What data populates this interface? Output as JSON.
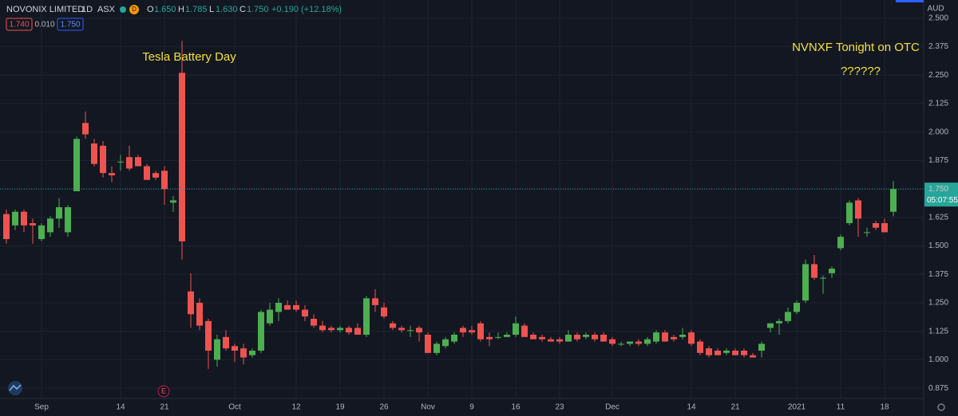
{
  "chart_data": {
    "type": "candlestick",
    "header": {
      "symbol": "NOVONIX LIMITED",
      "interval": "1D",
      "exchange": "ASX",
      "badge": "D",
      "o_key": "O",
      "o": "1.650",
      "h_key": "H",
      "h": "1.785",
      "l_key": "L",
      "l": "1.630",
      "c_key": "C",
      "c": "1.750",
      "change": "+0.190 (+12.18%)",
      "bid": "1.740",
      "spread": "0.010",
      "ask": "1.750"
    },
    "currency": "AUD",
    "annotations": [
      "Tesla Battery Day",
      "NVNXF Tonight on OTC",
      "??????"
    ],
    "event_marker": "E",
    "last_price": {
      "value": 1.75,
      "label": "1.750"
    },
    "countdown": "05:07:55",
    "up_color": "#4caf50",
    "down_color": "#ef5350",
    "grid": true,
    "categories": [
      null,
      null,
      null,
      null,
      "Sep",
      null,
      null,
      null,
      null,
      null,
      null,
      null,
      null,
      "14",
      null,
      null,
      null,
      null,
      "21",
      null,
      null,
      null,
      null,
      null,
      null,
      null,
      "Oct",
      null,
      null,
      null,
      null,
      null,
      null,
      "12",
      null,
      null,
      null,
      null,
      "19",
      null,
      null,
      null,
      null,
      "26",
      null,
      null,
      null,
      null,
      "Nov",
      null,
      null,
      null,
      null,
      "9",
      null,
      null,
      null,
      null,
      "16",
      null,
      null,
      null,
      null,
      "23",
      null,
      null,
      null,
      null,
      null,
      "Dec",
      null,
      null,
      null,
      null,
      null,
      null,
      null,
      null,
      "14",
      null,
      null,
      null,
      null,
      "21",
      null,
      null,
      null,
      null,
      null,
      null,
      "2021",
      null,
      null,
      null,
      null,
      "11",
      null,
      null,
      null,
      null,
      "18",
      null
    ],
    "open": [
      1.64,
      1.59,
      1.65,
      1.6,
      1.53,
      1.56,
      1.62,
      1.56,
      1.74,
      2.04,
      1.95,
      1.94,
      1.82,
      1.87,
      1.89,
      1.89,
      1.85,
      1.82,
      1.83,
      1.69,
      2.26,
      1.3,
      1.25,
      1.17,
      1.0,
      1.1,
      1.06,
      1.05,
      1.02,
      1.04,
      1.16,
      1.21,
      1.24,
      1.24,
      1.22,
      1.18,
      1.15,
      1.14,
      1.13,
      1.14,
      1.14,
      1.11,
      1.27,
      1.23,
      1.16,
      1.14,
      1.13,
      1.14,
      1.11,
      1.03,
      1.06,
      1.08,
      1.14,
      1.13,
      1.16,
      1.1,
      1.1,
      1.1,
      1.11,
      1.15,
      1.11,
      1.1,
      1.09,
      1.09,
      1.08,
      1.11,
      1.1,
      1.11,
      1.11,
      1.09,
      1.07,
      1.07,
      1.08,
      1.07,
      1.08,
      1.12,
      1.1,
      1.1,
      1.12,
      1.08,
      1.05,
      1.04,
      1.03,
      1.04,
      1.04,
      1.02,
      1.04,
      1.14,
      1.16,
      1.17,
      1.21,
      1.26,
      1.42,
      1.36,
      1.38,
      1.49,
      1.6,
      1.7,
      1.56,
      1.6,
      1.6,
      1.65
    ],
    "high": [
      1.66,
      1.66,
      1.66,
      1.62,
      1.6,
      1.63,
      1.71,
      1.68,
      1.98,
      2.09,
      1.97,
      1.96,
      1.85,
      1.9,
      1.94,
      1.9,
      1.86,
      1.83,
      1.85,
      1.72,
      2.4,
      1.38,
      1.27,
      1.18,
      1.11,
      1.13,
      1.07,
      1.07,
      1.05,
      1.22,
      1.25,
      1.27,
      1.26,
      1.26,
      1.24,
      1.2,
      1.17,
      1.15,
      1.15,
      1.15,
      1.16,
      1.28,
      1.31,
      1.25,
      1.17,
      1.15,
      1.15,
      1.15,
      1.12,
      1.08,
      1.1,
      1.12,
      1.15,
      1.15,
      1.17,
      1.12,
      1.12,
      1.12,
      1.19,
      1.16,
      1.12,
      1.11,
      1.1,
      1.1,
      1.13,
      1.12,
      1.12,
      1.12,
      1.12,
      1.1,
      1.08,
      1.08,
      1.09,
      1.1,
      1.13,
      1.13,
      1.11,
      1.14,
      1.13,
      1.09,
      1.06,
      1.05,
      1.05,
      1.05,
      1.05,
      1.03,
      1.08,
      1.16,
      1.18,
      1.23,
      1.26,
      1.44,
      1.46,
      1.37,
      1.41,
      1.55,
      1.7,
      1.71,
      1.58,
      1.61,
      1.62,
      1.785
    ],
    "low": [
      1.51,
      1.57,
      1.56,
      1.51,
      1.52,
      1.54,
      1.58,
      1.54,
      1.74,
      1.97,
      1.85,
      1.8,
      1.78,
      1.83,
      1.83,
      1.85,
      1.79,
      1.79,
      1.68,
      1.65,
      1.44,
      1.14,
      1.13,
      0.96,
      0.97,
      1.04,
      0.99,
      0.98,
      1.01,
      1.03,
      1.15,
      1.17,
      1.22,
      1.21,
      1.17,
      1.14,
      1.12,
      1.12,
      1.12,
      1.11,
      1.11,
      1.1,
      1.21,
      1.18,
      1.13,
      1.12,
      1.1,
      1.08,
      1.03,
      1.02,
      1.05,
      1.07,
      1.1,
      1.11,
      1.08,
      1.06,
      1.09,
      1.1,
      1.1,
      1.1,
      1.09,
      1.08,
      1.08,
      1.07,
      1.08,
      1.08,
      1.09,
      1.08,
      1.08,
      1.06,
      1.06,
      1.06,
      1.06,
      1.06,
      1.07,
      1.08,
      1.08,
      1.09,
      1.06,
      1.02,
      1.01,
      1.02,
      1.02,
      1.02,
      1.01,
      1.01,
      1.01,
      1.12,
      1.11,
      1.16,
      1.2,
      1.25,
      1.35,
      1.29,
      1.36,
      1.48,
      1.59,
      1.54,
      1.54,
      1.57,
      1.56,
      1.63
    ],
    "close": [
      1.53,
      1.65,
      1.59,
      1.59,
      1.59,
      1.62,
      1.67,
      1.67,
      1.97,
      1.99,
      1.86,
      1.82,
      1.81,
      1.87,
      1.84,
      1.85,
      1.79,
      1.8,
      1.75,
      1.7,
      1.52,
      1.2,
      1.15,
      1.04,
      1.09,
      1.05,
      1.04,
      1.01,
      1.04,
      1.21,
      1.22,
      1.25,
      1.22,
      1.22,
      1.19,
      1.15,
      1.13,
      1.13,
      1.14,
      1.12,
      1.11,
      1.27,
      1.24,
      1.19,
      1.14,
      1.13,
      1.13,
      1.12,
      1.03,
      1.07,
      1.09,
      1.11,
      1.12,
      1.12,
      1.09,
      1.09,
      1.1,
      1.11,
      1.16,
      1.1,
      1.09,
      1.09,
      1.08,
      1.08,
      1.11,
      1.09,
      1.11,
      1.09,
      1.08,
      1.07,
      1.07,
      1.08,
      1.07,
      1.09,
      1.12,
      1.08,
      1.09,
      1.11,
      1.07,
      1.03,
      1.02,
      1.02,
      1.04,
      1.02,
      1.02,
      1.01,
      1.07,
      1.16,
      1.17,
      1.21,
      1.25,
      1.42,
      1.36,
      1.36,
      1.4,
      1.54,
      1.69,
      1.62,
      1.56,
      1.58,
      1.56,
      1.75
    ],
    "ylim": [
      0.83,
      2.58
    ],
    "yticks": [
      {
        "value": 0.875,
        "label": "0.875"
      },
      {
        "value": 1,
        "label": "1.000"
      },
      {
        "value": 1.125,
        "label": "1.125"
      },
      {
        "value": 1.25,
        "label": "1.250"
      },
      {
        "value": 1.375,
        "label": "1.375"
      },
      {
        "value": 1.5,
        "label": "1.500"
      },
      {
        "value": 1.625,
        "label": "1.625"
      },
      {
        "value": 1.75,
        "label": "1.750"
      },
      {
        "value": 1.875,
        "label": "1.875"
      },
      {
        "value": 2,
        "label": "2.000"
      },
      {
        "value": 2.125,
        "label": "2.125"
      },
      {
        "value": 2.25,
        "label": "2.250"
      },
      {
        "value": 2.375,
        "label": "2.375"
      },
      {
        "value": 2.5,
        "label": "2.500"
      }
    ]
  }
}
